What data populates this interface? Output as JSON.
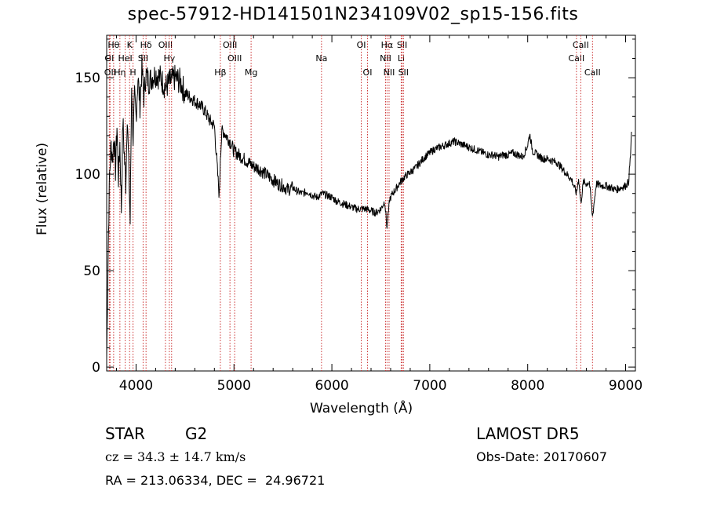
{
  "header": {
    "title": "spec-57912-HD141501N234109V02_sp15-156.fits"
  },
  "footer": {
    "object_type": "STAR",
    "subclass": "G2",
    "survey": "LAMOST DR5",
    "cz": "cz = 34.3 ± 14.7 km/s",
    "obs_date": "Obs-Date: 20170607",
    "radec": "RA = 213.06334, DEC =  24.96721"
  },
  "chart_data": {
    "type": "line",
    "title": "spec-57912-HD141501N234109V02_sp15-156.fits",
    "xlabel": "Wavelength (Å)",
    "ylabel": "Flux (relative)",
    "xlim": [
      3700,
      9100
    ],
    "ylim": [
      -2,
      172
    ],
    "xticks": [
      4000,
      5000,
      6000,
      7000,
      8000,
      9000
    ],
    "yticks": [
      0,
      50,
      100,
      150
    ],
    "grid": false,
    "line_color": "#000000",
    "marker_color": "#cc3333",
    "series": [
      {
        "values_x": [
          3700,
          3715,
          3730,
          3745,
          3760,
          3775,
          3790,
          3805,
          3820,
          3835,
          3850,
          3865,
          3880,
          3895,
          3910,
          3925,
          3940,
          3955,
          3970,
          3985,
          4000,
          4020,
          4040,
          4060,
          4080,
          4100,
          4130,
          4160,
          4200,
          4250,
          4300,
          4350,
          4400,
          4450,
          4500,
          4550,
          4600,
          4650,
          4700,
          4750,
          4800,
          4850,
          4861,
          4880,
          4920,
          4960,
          5000,
          5050,
          5100,
          5150,
          5200,
          5250,
          5300,
          5350,
          5400,
          5450,
          5500,
          5550,
          5600,
          5650,
          5700,
          5750,
          5800,
          5850,
          5900,
          5950,
          6000,
          6050,
          6100,
          6150,
          6200,
          6250,
          6300,
          6350,
          6400,
          6450,
          6500,
          6540,
          6563,
          6590,
          6620,
          6650,
          6700,
          6750,
          6800,
          6850,
          6900,
          6950,
          7000,
          7050,
          7100,
          7150,
          7200,
          7250,
          7300,
          7350,
          7400,
          7450,
          7500,
          7550,
          7600,
          7650,
          7700,
          7750,
          7800,
          7850,
          7900,
          7950,
          8000,
          8020,
          8050,
          8100,
          8150,
          8200,
          8250,
          8300,
          8350,
          8400,
          8450,
          8498,
          8520,
          8542,
          8570,
          8600,
          8630,
          8662,
          8700,
          8750,
          8800,
          8850,
          8900,
          8950,
          9000,
          9030,
          9050,
          9060
        ],
        "values_y": [
          5,
          60,
          100,
          115,
          108,
          120,
          102,
          125,
          98,
          116,
          82,
          128,
          110,
          95,
          132,
          104,
          75,
          148,
          118,
          140,
          130,
          150,
          136,
          155,
          140,
          152,
          148,
          150,
          152,
          150,
          145,
          148,
          150,
          148,
          142,
          140,
          138,
          136,
          133,
          128,
          125,
          88,
          110,
          123,
          120,
          117,
          112,
          110,
          108,
          106,
          104,
          103,
          101,
          99,
          97,
          95,
          94,
          92,
          93,
          91,
          90,
          91,
          89,
          88,
          90,
          89,
          88,
          86,
          85,
          84,
          83,
          82,
          82,
          82,
          81,
          80,
          82,
          86,
          72,
          87,
          90,
          92,
          96,
          99,
          101,
          103,
          106,
          109,
          111,
          113,
          114,
          115,
          116,
          117,
          116,
          115,
          114,
          113,
          112,
          111,
          110,
          110,
          109,
          110,
          110,
          111,
          110,
          109,
          115,
          121,
          112,
          110,
          108,
          108,
          107,
          106,
          103,
          100,
          97,
          90,
          98,
          85,
          96,
          95,
          96,
          78,
          95,
          94,
          94,
          93,
          92,
          93,
          94,
          96,
          110,
          122
        ]
      }
    ],
    "lines": [
      {
        "label": "OI",
        "wl": 3727,
        "row": 1
      },
      {
        "label": "OII",
        "wl": 3735,
        "row": 2
      },
      {
        "label": "Hθ",
        "wl": 3771,
        "row": 0
      },
      {
        "label": "Hη",
        "wl": 3835,
        "row": 2
      },
      {
        "label": "HeI",
        "wl": 3889,
        "row": 1
      },
      {
        "label": "K",
        "wl": 3934,
        "row": 0
      },
      {
        "label": "H",
        "wl": 3969,
        "row": 2
      },
      {
        "label": "SII",
        "wl": 4072,
        "row": 1
      },
      {
        "label": "Hδ",
        "wl": 4102,
        "row": 0
      },
      {
        "label": "OIII",
        "wl": 4300,
        "row": 0
      },
      {
        "label": "Hγ",
        "wl": 4340,
        "row": 1
      },
      {
        "label": "G",
        "wl": 4363,
        "row": 2
      },
      {
        "label": "Hβ",
        "wl": 4861,
        "row": 2
      },
      {
        "label": "OIII",
        "wl": 4959,
        "row": 0
      },
      {
        "label": "OIII",
        "wl": 5007,
        "row": 1
      },
      {
        "label": "Mg",
        "wl": 5175,
        "row": 2
      },
      {
        "label": "Na",
        "wl": 5894,
        "row": 1
      },
      {
        "label": "OI",
        "wl": 6300,
        "row": 0
      },
      {
        "label": "OI",
        "wl": 6364,
        "row": 2
      },
      {
        "label": "NII",
        "wl": 6548,
        "row": 1
      },
      {
        "label": "Hα",
        "wl": 6563,
        "row": 0
      },
      {
        "label": "NII",
        "wl": 6584,
        "row": 2
      },
      {
        "label": "SII",
        "wl": 6717,
        "row": 0
      },
      {
        "label": "Li",
        "wl": 6708,
        "row": 1
      },
      {
        "label": "SII",
        "wl": 6731,
        "row": 2
      },
      {
        "label": "CaII",
        "wl": 8498,
        "row": 1
      },
      {
        "label": "CaII",
        "wl": 8542,
        "row": 0
      },
      {
        "label": "CaII",
        "wl": 8662,
        "row": 2
      }
    ]
  }
}
